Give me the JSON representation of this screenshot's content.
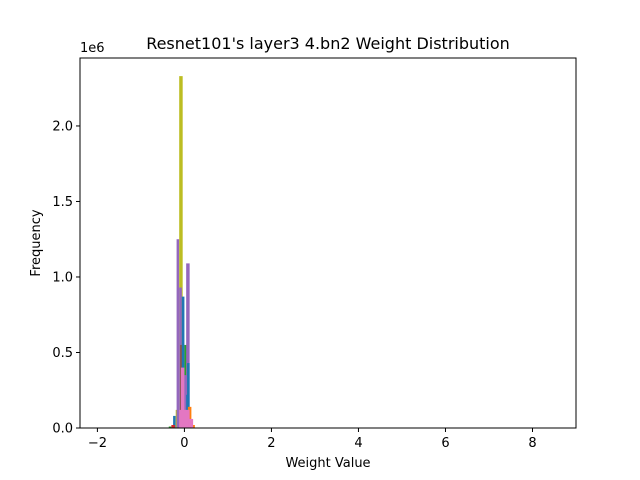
{
  "chart_data": {
    "type": "bar",
    "title": "Resnet101's layer3 4.bn2 Weight Distribution",
    "xlabel": "Weight Value",
    "ylabel": "Frequency",
    "y_offset_label": "1e6",
    "xlim": [
      -2.4,
      9.0
    ],
    "ylim": [
      0,
      2.45
    ],
    "x_ticks": [
      -2,
      0,
      2,
      4,
      6,
      8
    ],
    "x_tick_labels": [
      "−2",
      "0",
      "2",
      "4",
      "6",
      "8"
    ],
    "y_ticks": [
      0.0,
      0.5,
      1.0,
      1.5,
      2.0
    ],
    "y_tick_labels": [
      "0.0",
      "0.5",
      "1.0",
      "1.5",
      "2.0"
    ],
    "grid": false,
    "units": "millions",
    "bars": [
      {
        "x0": -0.36,
        "x1": -0.3,
        "value": 0.01,
        "color": "#2ca02c"
      },
      {
        "x0": -0.26,
        "x1": -0.2,
        "value": 0.08,
        "color": "#1f77b4"
      },
      {
        "x0": -0.2,
        "x1": -0.14,
        "value": 0.12,
        "color": "#bcbd22"
      },
      {
        "x0": -0.18,
        "x1": -0.12,
        "value": 1.25,
        "color": "#9467bd"
      },
      {
        "x0": -0.12,
        "x1": -0.04,
        "value": 2.33,
        "color": "#bcbd22"
      },
      {
        "x0": -0.12,
        "x1": -0.06,
        "value": 0.93,
        "color": "#9467bd"
      },
      {
        "x0": -0.1,
        "x1": -0.04,
        "value": 0.55,
        "color": "#8c564b"
      },
      {
        "x0": -0.06,
        "x1": 0.0,
        "value": 0.87,
        "color": "#1f77b4"
      },
      {
        "x0": 0.0,
        "x1": 0.06,
        "value": 0.55,
        "color": "#2ca02c"
      },
      {
        "x0": 0.04,
        "x1": 0.12,
        "value": 1.09,
        "color": "#9467bd"
      },
      {
        "x0": 0.06,
        "x1": 0.12,
        "value": 0.43,
        "color": "#1f77b4"
      },
      {
        "x0": 0.0,
        "x1": 0.06,
        "value": 0.35,
        "color": "#9467bd"
      },
      {
        "x0": 0.04,
        "x1": 0.1,
        "value": 0.22,
        "color": "#1f77b4"
      },
      {
        "x0": -0.08,
        "x1": 0.0,
        "value": 0.4,
        "color": "#e377c2"
      },
      {
        "x0": 0.08,
        "x1": 0.16,
        "value": 0.14,
        "color": "#ff7f0e"
      },
      {
        "x0": 0.16,
        "x1": 0.24,
        "value": 0.02,
        "color": "#ff7f0e"
      },
      {
        "x0": -0.12,
        "x1": 0.12,
        "value": 0.12,
        "color": "#e377c2"
      },
      {
        "x0": -0.3,
        "x1": -0.22,
        "value": 0.02,
        "color": "#d62728"
      },
      {
        "x0": 0.1,
        "x1": 0.2,
        "value": 0.06,
        "color": "#e377c2"
      }
    ]
  }
}
